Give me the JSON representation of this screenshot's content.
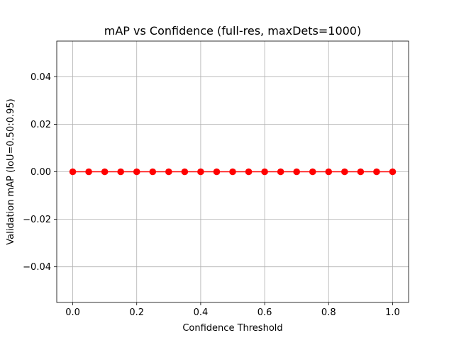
{
  "chart_data": {
    "type": "line",
    "title": "mAP vs Confidence (full-res, maxDets=1000)",
    "xlabel": "Confidence Threshold",
    "ylabel": "Validation mAP (IoU=0.50:0.95)",
    "xlim": [
      -0.05,
      1.05
    ],
    "ylim": [
      -0.055,
      0.055
    ],
    "xticks": [
      0.0,
      0.2,
      0.4,
      0.6,
      0.8,
      1.0
    ],
    "xtick_labels": [
      "0.0",
      "0.2",
      "0.4",
      "0.6",
      "0.8",
      "1.0"
    ],
    "yticks": [
      -0.04,
      -0.02,
      0.0,
      0.02,
      0.04
    ],
    "ytick_labels": [
      "−0.04",
      "−0.02",
      "0.00",
      "0.02",
      "0.04"
    ],
    "grid": true,
    "series": [
      {
        "color": "#ff0000",
        "marker": "circle",
        "x": [
          0.0,
          0.05,
          0.1,
          0.15,
          0.2,
          0.25,
          0.3,
          0.35,
          0.4,
          0.45,
          0.5,
          0.55,
          0.6,
          0.65,
          0.7,
          0.75,
          0.8,
          0.85,
          0.9,
          0.95,
          1.0
        ],
        "y": [
          0,
          0,
          0,
          0,
          0,
          0,
          0,
          0,
          0,
          0,
          0,
          0,
          0,
          0,
          0,
          0,
          0,
          0,
          0,
          0,
          0
        ]
      }
    ]
  }
}
